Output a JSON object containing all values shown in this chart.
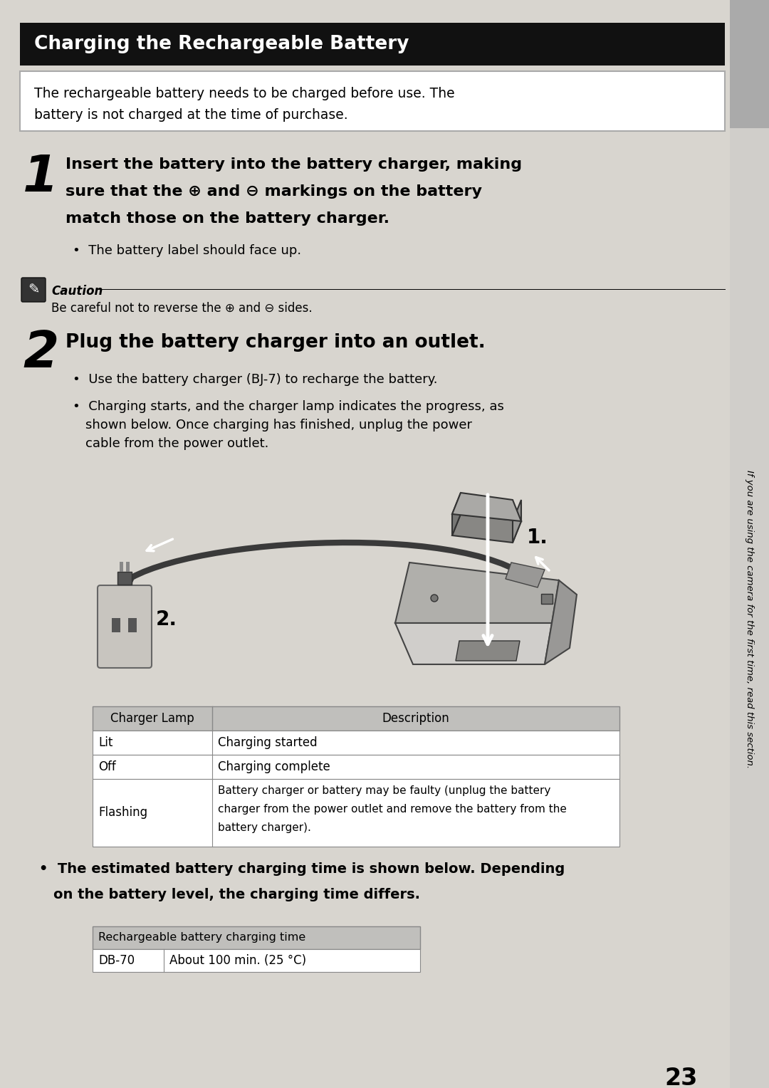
{
  "bg_color": "#d8d5cf",
  "title": "Charging the Rechargeable Battery",
  "title_bg": "#111111",
  "title_color": "#ffffff",
  "intro_text_line1": "The rechargeable battery needs to be charged before use. The",
  "intro_text_line2": "battery is not charged at the time of purchase.",
  "intro_box_bg": "#ffffff",
  "intro_box_border": "#aaaaaa",
  "step1_number": "1",
  "step1_line1": "Insert the battery into the battery charger, making",
  "step1_line2": "sure that the ⊕ and ⊖ markings on the battery",
  "step1_line3": "match those on the battery charger.",
  "step1_bullet": "The battery label should face up.",
  "caution_label": "Caution",
  "caution_dashes": "----------------------------------------------------------------------------------------",
  "caution_text": "Be careful not to reverse the ⊕ and ⊖ sides.",
  "step2_number": "2",
  "step2_text": "Plug the battery charger into an outlet.",
  "step2_bullet1": "Use the battery charger (BJ-7) to recharge the battery.",
  "step2_bullet2_line1": "Charging starts, and the charger lamp indicates the progress, as",
  "step2_bullet2_line2": "shown below. Once charging has finished, unplug the power",
  "step2_bullet2_line3": "cable from the power outlet.",
  "table1_header": [
    "Charger Lamp",
    "Description"
  ],
  "table1_rows": [
    [
      "Lit",
      "Charging started"
    ],
    [
      "Off",
      "Charging complete"
    ],
    [
      "Flashing",
      "Battery charger or battery may be faulty (unplug the battery\ncharger from the power outlet and remove the battery from the\nbattery charger)."
    ]
  ],
  "table1_header_bg": "#c0bfbc",
  "table_border": "#888888",
  "bullet_line1": "The estimated battery charging time is shown below. Depending",
  "bullet_line2": "on the battery level, the charging time differs.",
  "table2_header": "Rechargeable battery charging time",
  "table2_row": [
    "DB-70",
    "About 100 min. (25 °C)"
  ],
  "table2_header_bg": "#c0bfbc",
  "page_number": "23",
  "side_text": "If you are using the camera for the first time, read this section.",
  "side_bar_color_top": "#aaaaaa",
  "side_bar_color_bottom": "#c0bfbc"
}
